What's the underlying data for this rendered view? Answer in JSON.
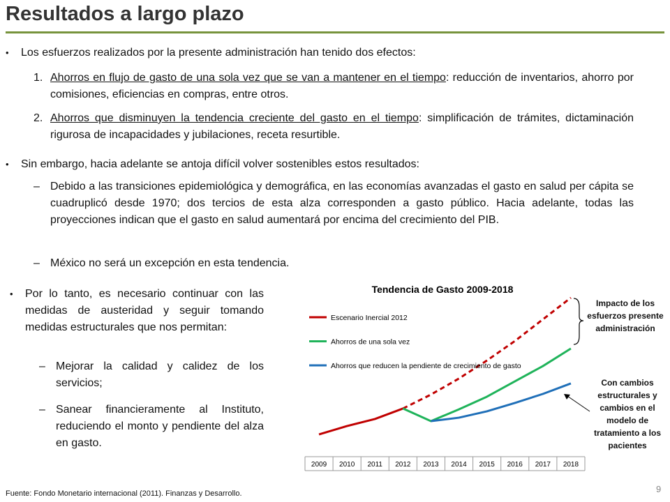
{
  "title": "Resultados a largo plazo",
  "page_number": "9",
  "source": "Fuente: Fondo Monetario internacional (2011). Finanzas y Desarrollo.",
  "bullets": [
    {
      "text": "Los esfuerzos realizados por la presente administración han tenido dos efectos:",
      "items": [
        {
          "number": "1.",
          "underlined": "Ahorros en flujo de gasto de una sola vez que se van a mantener en el tiempo",
          "text": ": reducción de inventarios, ahorro por comisiones, eficiencias en compras, entre otros."
        },
        {
          "number": "2.",
          "underlined": "Ahorros que disminuyen la tendencia creciente del gasto en el tiempo",
          "text": ": simplificación de trámites, dictaminación rigurosa de incapacidades y jubilaciones, receta resurtible."
        }
      ]
    },
    {
      "text": "Sin embargo, hacia adelante se antoja difícil volver sostenibles estos resultados:",
      "items": [
        {
          "text": "Debido a las transiciones epidemiológica y demográfica, en las economías avanzadas el gasto en salud per cápita se cuadruplicó desde 1970; dos tercios de esta alza corresponden a gasto público.  Hacia adelante, todas las proyecciones indican que el gasto en salud aumentará por encima del crecimiento del PIB."
        },
        {
          "text": "México no será un excepción en esta tendencia."
        }
      ]
    },
    {
      "text": "Por lo tanto, es necesario continuar con las medidas de austeridad y seguir tomando medidas estructurales que nos permitan:",
      "items": [
        {
          "text": "Mejorar la calidad y calidez de los servicios;"
        },
        {
          "text": "Sanear financieramente al Instituto, reduciendo el monto y pendiente del alza en gasto."
        }
      ]
    }
  ],
  "chart_data": {
    "type": "line",
    "title": "Tendencia de Gasto 2009-2018",
    "categories": [
      "2009",
      "2010",
      "2011",
      "2012",
      "2013",
      "2014",
      "2015",
      "2016",
      "2017",
      "2018"
    ],
    "ylim": [
      0,
      100
    ],
    "series": [
      {
        "name": "Escenario Inercial 2012",
        "color": "#c00000",
        "dashed_from": "2012",
        "values": [
          13.6,
          18.7,
          23,
          29.4,
          37.9,
          47.7,
          58.7,
          70.6,
          83.8,
          97
        ]
      },
      {
        "name": "Ahorros de una sola vez",
        "color": "#1fb35a",
        "values": [
          null,
          null,
          null,
          29.4,
          21.7,
          28.9,
          36.6,
          46,
          55.3,
          66
        ]
      },
      {
        "name": "Ahorros que reducen la pendiente de crecimiento de gasto",
        "color": "#1f6fb8",
        "values": [
          null,
          null,
          null,
          null,
          21.7,
          23.8,
          27.7,
          32.8,
          38.3,
          44.7
        ]
      }
    ],
    "annotations": [
      "Impacto de los esfuerzos presente administración",
      "Con cambios estructurales y cambios en el modelo de tratamiento a los pacientes"
    ]
  }
}
